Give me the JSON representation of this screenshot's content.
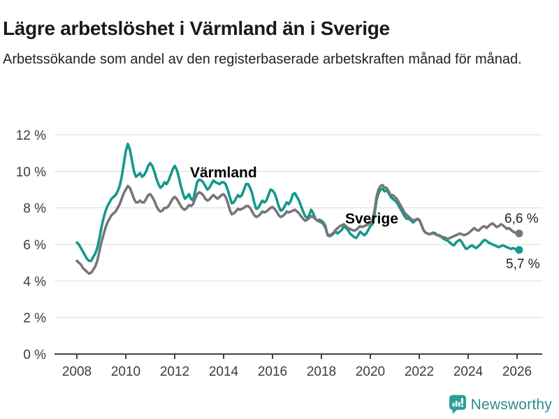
{
  "chart_data": {
    "type": "line",
    "title": "Lägre arbetslöshet i Värmland än i Sverige",
    "subtitle": "Arbetssökande som andel av den registerbaserade arbetskraften månad för månad.",
    "x_start_year": 2008,
    "x_start_month": 1,
    "frequency": "monthly",
    "ylim": [
      0,
      12
    ],
    "grid": "horizontal",
    "y_ticks": [
      {
        "value": 12,
        "label": "12 %"
      },
      {
        "value": 10,
        "label": "10 %"
      },
      {
        "value": 8,
        "label": "8 %"
      },
      {
        "value": 6,
        "label": "6 %"
      },
      {
        "value": 4,
        "label": "4 %"
      },
      {
        "value": 2,
        "label": "2 %"
      },
      {
        "value": 0,
        "label": "0 %"
      }
    ],
    "x_ticks": [
      {
        "year": 2008,
        "label": "2008"
      },
      {
        "year": 2010,
        "label": "2010"
      },
      {
        "year": 2012,
        "label": "2012"
      },
      {
        "year": 2014,
        "label": "2014"
      },
      {
        "year": 2016,
        "label": "2016"
      },
      {
        "year": 2018,
        "label": "2018"
      },
      {
        "year": 2020,
        "label": "2020"
      },
      {
        "year": 2022,
        "label": "2022"
      },
      {
        "year": 2024,
        "label": "2024"
      },
      {
        "year": 2026,
        "label": "2026"
      }
    ],
    "series": [
      {
        "name": "Värmland",
        "color": "#12998c",
        "end_label": "5,7 %",
        "values": [
          6.1,
          6.0,
          5.8,
          5.6,
          5.4,
          5.2,
          5.1,
          5.1,
          5.3,
          5.5,
          5.8,
          6.3,
          6.9,
          7.4,
          7.8,
          8.1,
          8.3,
          8.5,
          8.6,
          8.7,
          8.9,
          9.2,
          9.7,
          10.4,
          11.1,
          11.5,
          11.2,
          10.6,
          10.0,
          9.7,
          9.8,
          9.9,
          9.7,
          9.8,
          10.0,
          10.3,
          10.45,
          10.3,
          10.0,
          9.6,
          9.3,
          9.1,
          9.2,
          9.4,
          9.3,
          9.5,
          9.8,
          10.1,
          10.3,
          10.1,
          9.7,
          9.2,
          8.8,
          8.5,
          8.6,
          8.75,
          8.5,
          8.4,
          8.9,
          9.4,
          9.55,
          9.5,
          9.4,
          9.2,
          9.0,
          9.1,
          9.3,
          9.5,
          9.4,
          9.35,
          9.3,
          9.4,
          9.4,
          9.3,
          9.0,
          8.6,
          8.25,
          8.3,
          8.5,
          8.7,
          8.6,
          8.7,
          9.0,
          9.3,
          9.3,
          9.1,
          8.8,
          8.3,
          7.95,
          8.0,
          8.2,
          8.4,
          8.3,
          8.4,
          8.7,
          9.0,
          8.95,
          8.8,
          8.5,
          8.1,
          7.85,
          7.9,
          8.1,
          8.3,
          8.2,
          8.4,
          8.75,
          8.8,
          8.6,
          8.4,
          8.1,
          7.8,
          7.55,
          7.45,
          7.6,
          7.9,
          7.7,
          7.4,
          7.3,
          7.35,
          7.3,
          7.2,
          7.0,
          6.5,
          6.45,
          6.5,
          6.6,
          6.7,
          6.6,
          6.7,
          6.8,
          7.0,
          6.9,
          6.8,
          6.6,
          6.5,
          6.4,
          6.35,
          6.5,
          6.7,
          6.6,
          6.5,
          6.6,
          6.8,
          7.0,
          7.1,
          7.6,
          8.4,
          8.8,
          9.0,
          9.05,
          8.9,
          8.95,
          8.8,
          8.6,
          8.5,
          8.4,
          8.3,
          8.1,
          7.9,
          7.7,
          7.5,
          7.4,
          7.4,
          7.3,
          7.2,
          7.3,
          7.4,
          7.35,
          7.1,
          6.8,
          6.65,
          6.6,
          6.55,
          6.6,
          6.65,
          6.6,
          6.5,
          6.5,
          6.4,
          6.3,
          6.25,
          6.2,
          6.1,
          6.0,
          5.95,
          6.1,
          6.2,
          6.25,
          6.1,
          5.9,
          5.75,
          5.8,
          5.9,
          5.95,
          5.85,
          5.8,
          5.9,
          6.0,
          6.15,
          6.25,
          6.2,
          6.1,
          6.05,
          6.0,
          5.95,
          5.9,
          5.85,
          5.9,
          5.95,
          5.9,
          5.85,
          5.8,
          5.75,
          5.8,
          5.75,
          5.7,
          5.7
        ]
      },
      {
        "name": "Sverige",
        "color": "#76767a",
        "end_label": "6,6 %",
        "values": [
          5.1,
          5.0,
          4.9,
          4.7,
          4.6,
          4.5,
          4.4,
          4.45,
          4.6,
          4.8,
          5.1,
          5.6,
          6.1,
          6.5,
          6.9,
          7.2,
          7.4,
          7.6,
          7.7,
          7.8,
          8.0,
          8.2,
          8.5,
          8.8,
          9.0,
          9.2,
          9.1,
          8.8,
          8.5,
          8.3,
          8.3,
          8.4,
          8.3,
          8.3,
          8.5,
          8.7,
          8.75,
          8.6,
          8.4,
          8.1,
          7.9,
          7.8,
          7.85,
          8.0,
          8.0,
          8.1,
          8.3,
          8.5,
          8.6,
          8.5,
          8.3,
          8.1,
          7.95,
          7.9,
          8.0,
          8.15,
          8.1,
          8.2,
          8.5,
          8.75,
          8.85,
          8.8,
          8.7,
          8.5,
          8.4,
          8.45,
          8.6,
          8.7,
          8.6,
          8.5,
          8.6,
          8.7,
          8.75,
          8.6,
          8.3,
          7.9,
          7.65,
          7.7,
          7.8,
          7.95,
          7.9,
          7.95,
          8.0,
          8.1,
          8.1,
          8.0,
          7.8,
          7.6,
          7.5,
          7.55,
          7.65,
          7.8,
          7.75,
          7.8,
          7.9,
          8.0,
          8.05,
          7.95,
          7.8,
          7.6,
          7.5,
          7.55,
          7.65,
          7.8,
          7.75,
          7.8,
          7.85,
          7.9,
          7.8,
          7.7,
          7.55,
          7.4,
          7.3,
          7.35,
          7.45,
          7.55,
          7.5,
          7.4,
          7.3,
          7.25,
          7.2,
          7.1,
          6.9,
          6.55,
          6.5,
          6.55,
          6.65,
          6.8,
          6.9,
          7.0,
          7.05,
          7.1,
          7.0,
          6.9,
          6.85,
          6.8,
          6.75,
          6.8,
          6.9,
          7.0,
          6.95,
          7.0,
          7.05,
          7.1,
          7.2,
          7.3,
          7.8,
          8.6,
          9.0,
          9.2,
          9.25,
          9.1,
          9.1,
          8.9,
          8.7,
          8.7,
          8.6,
          8.5,
          8.3,
          8.1,
          7.9,
          7.7,
          7.6,
          7.5,
          7.4,
          7.3,
          7.35,
          7.4,
          7.35,
          7.1,
          6.8,
          6.65,
          6.6,
          6.55,
          6.6,
          6.6,
          6.55,
          6.5,
          6.45,
          6.4,
          6.4,
          6.35,
          6.3,
          6.35,
          6.4,
          6.45,
          6.5,
          6.55,
          6.6,
          6.55,
          6.5,
          6.55,
          6.6,
          6.7,
          6.8,
          6.9,
          6.8,
          6.75,
          6.85,
          6.95,
          7.0,
          6.9,
          7.0,
          7.1,
          7.15,
          7.05,
          6.95,
          7.0,
          7.1,
          7.05,
          6.95,
          6.85,
          6.9,
          6.8,
          6.7,
          6.65,
          6.6,
          6.6
        ]
      }
    ],
    "colors": {
      "grid": "#d9d9d9",
      "axis": "#404040",
      "tick_text": "#3c3c3c"
    }
  },
  "footer": {
    "brand": "Newsworthy"
  }
}
